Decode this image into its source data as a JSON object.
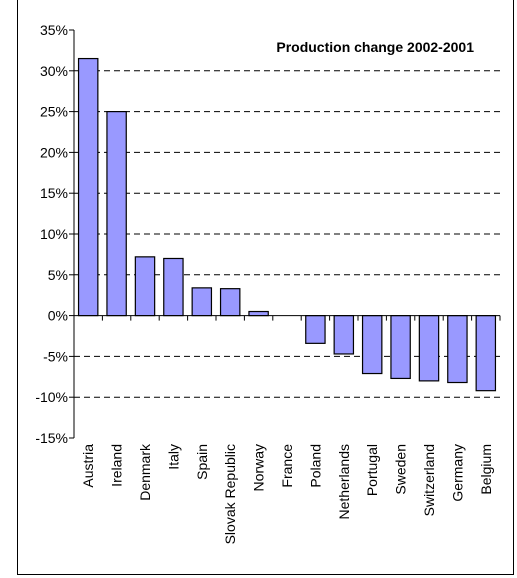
{
  "chart_data": {
    "type": "bar",
    "title": "Production change 2002-2001",
    "xlabel": "",
    "ylabel": "",
    "legend": "none",
    "grid": "horizontal dashed",
    "ylim": [
      -15,
      35
    ],
    "yticks": [
      35,
      30,
      25,
      20,
      15,
      10,
      5,
      0,
      -5,
      -10,
      -15
    ],
    "ytick_labels": [
      "35%",
      "30%",
      "25%",
      "20%",
      "15%",
      "10%",
      "5%",
      "0%",
      "-5%",
      "-10%",
      "-15%"
    ],
    "categories": [
      "Austria",
      "Ireland",
      "Denmark",
      "Italy",
      "Spain",
      "Slovak Republic",
      "Norway",
      "France",
      "Poland",
      "Netherlands",
      "Portugal",
      "Sweden",
      "Switzerland",
      "Germany",
      "Belgium"
    ],
    "values": [
      31.5,
      25.0,
      7.2,
      7.0,
      3.4,
      3.3,
      0.5,
      0.0,
      -3.4,
      -4.7,
      -7.1,
      -7.7,
      -8.0,
      -8.2,
      -9.2
    ],
    "bar_color": "#9999ff",
    "bar_outline": "#000000"
  }
}
